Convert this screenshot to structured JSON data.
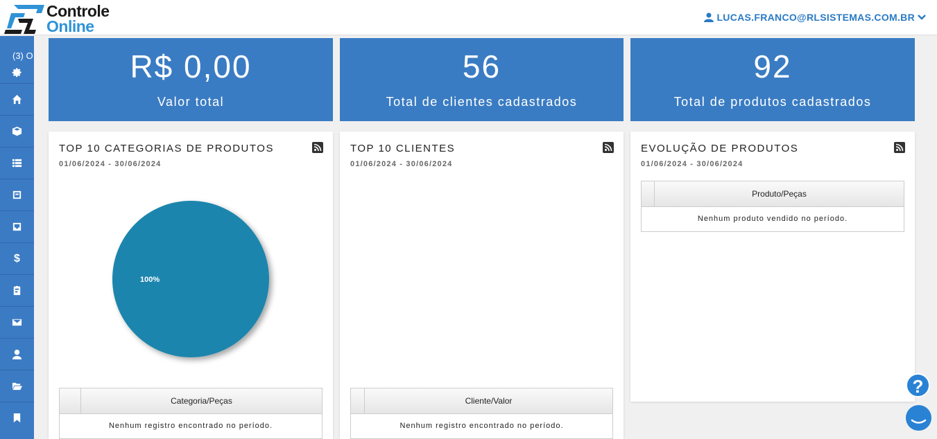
{
  "header": {
    "logo_line1": "Controle",
    "logo_line2": "Online",
    "user_email": "LUCAS.FRANCO@RLSISTEMAS.COM.BR"
  },
  "sidebar": {
    "notifications_label": "(3) O",
    "items": [
      {
        "icon": "gear-icon"
      },
      {
        "icon": "home-icon"
      },
      {
        "icon": "cube-icon"
      },
      {
        "icon": "list-icon"
      },
      {
        "icon": "archive-icon"
      },
      {
        "icon": "inbox-icon"
      },
      {
        "icon": "dollar-icon",
        "glyph": "$"
      },
      {
        "icon": "clipboard-icon"
      },
      {
        "icon": "envelope-icon"
      },
      {
        "icon": "user-icon"
      },
      {
        "icon": "folder-open-icon"
      },
      {
        "icon": "bookmark-icon"
      }
    ]
  },
  "stats": [
    {
      "value": "R$ 0,00",
      "label": "Valor total"
    },
    {
      "value": "56",
      "label": "Total de clientes cadastrados"
    },
    {
      "value": "92",
      "label": "Total de produtos cadastrados"
    }
  ],
  "cards": {
    "categories": {
      "title": "TOP 10 CATEGORIAS DE PRODUTOS",
      "date_range": "01/06/2024 - 30/06/2024",
      "table_header": "Categoria/Peças",
      "empty_message": "Nenhum registro encontrado no período."
    },
    "clients": {
      "title": "TOP 10 CLIENTES",
      "date_range": "01/06/2024 - 30/06/2024",
      "table_header": "Cliente/Valor",
      "empty_message": "Nenhum registro encontrado no período."
    },
    "products": {
      "title": "EVOLUÇÃO DE PRODUTOS",
      "date_range": "01/06/2024 - 30/06/2024",
      "table_header": "Produto/Peças",
      "empty_message": "Nenhum produto vendido no período."
    }
  },
  "chart_data": {
    "type": "pie",
    "categories": [
      ""
    ],
    "values": [
      100
    ],
    "data_labels": [
      "100%"
    ],
    "colors": [
      "#1a85ad"
    ]
  },
  "help": {
    "glyph": "?"
  },
  "colors": {
    "accent": "#3a7cc3",
    "sidebar": "#3b7bc4",
    "pie": "#1a85ad",
    "link": "#2a7ac4"
  }
}
